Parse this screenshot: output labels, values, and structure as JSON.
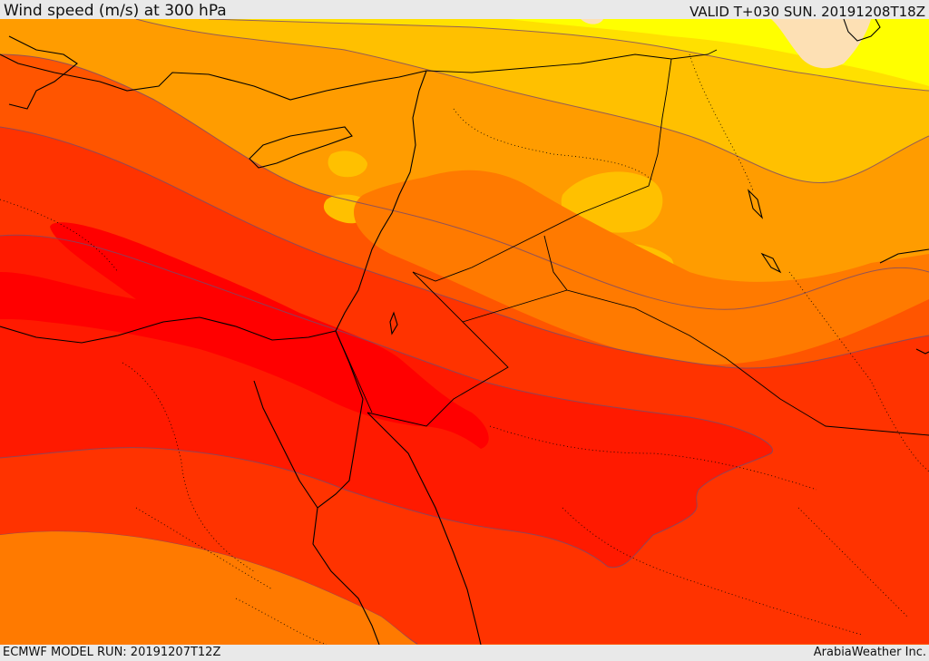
{
  "header": {
    "title": "Wind speed (m/s) at 300 hPa",
    "valid": "VALID T+030 SUN. 20191208T18Z"
  },
  "footer": {
    "model_run": "ECMWF MODEL RUN: 20191207T12Z",
    "credit": "ArabiaWeather Inc."
  },
  "colors": {
    "band_pale": "#fde0b4",
    "band_yellow": "#ffff00",
    "band_gold": "#ffe000",
    "band_amber": "#ffc000",
    "band_orange_light": "#ff9c00",
    "band_orange": "#ff7a00",
    "band_orange_dark": "#ff5500",
    "band_red_orange": "#ff3300",
    "band_red": "#ff1a00",
    "band_core": "#ff0000",
    "contour": "#7a4a6a",
    "coast": "#000000"
  }
}
